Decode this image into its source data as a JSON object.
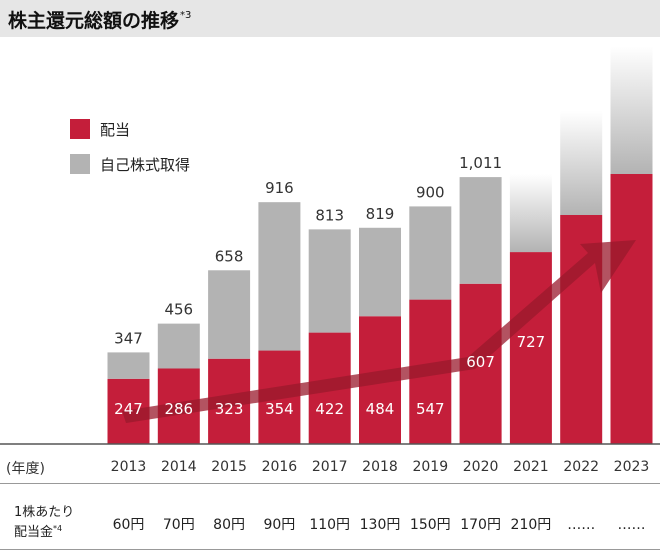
{
  "title": {
    "text": "株主還元総額の推移",
    "note": "*3"
  },
  "axis": {
    "year_label": "(年度)"
  },
  "dps": {
    "line1": "1株あたり",
    "line2": "配当金",
    "note": "*4"
  },
  "colors": {
    "dividend": "#c41e3a",
    "buyback": "#b3b3b3",
    "arrow": "#9a1a2c"
  },
  "chart_data": {
    "type": "bar",
    "stacked": true,
    "categories": [
      "2013",
      "2014",
      "2015",
      "2016",
      "2017",
      "2018",
      "2019",
      "2020",
      "2021",
      "2022",
      "2023"
    ],
    "series": [
      {
        "name": "配当",
        "values": [
          247,
          286,
          323,
          354,
          422,
          484,
          547,
          607,
          727,
          null,
          null
        ]
      },
      {
        "name": "自己株式取得",
        "values": [
          100,
          170,
          335,
          562,
          391,
          335,
          353,
          404,
          null,
          null,
          null
        ]
      }
    ],
    "totals": [
      "347",
      "456",
      "658",
      "916",
      "813",
      "819",
      "900",
      "1,011",
      "",
      "",
      ""
    ],
    "dividend_labels": [
      "247",
      "286",
      "323",
      "354",
      "422",
      "484",
      "547",
      "607",
      "727",
      "",
      ""
    ],
    "legend_position": "top-left",
    "dividend_per_share": [
      "60円",
      "70円",
      "80円",
      "90円",
      "110円",
      "130円",
      "150円",
      "170円",
      "210円",
      "……",
      "……"
    ]
  }
}
